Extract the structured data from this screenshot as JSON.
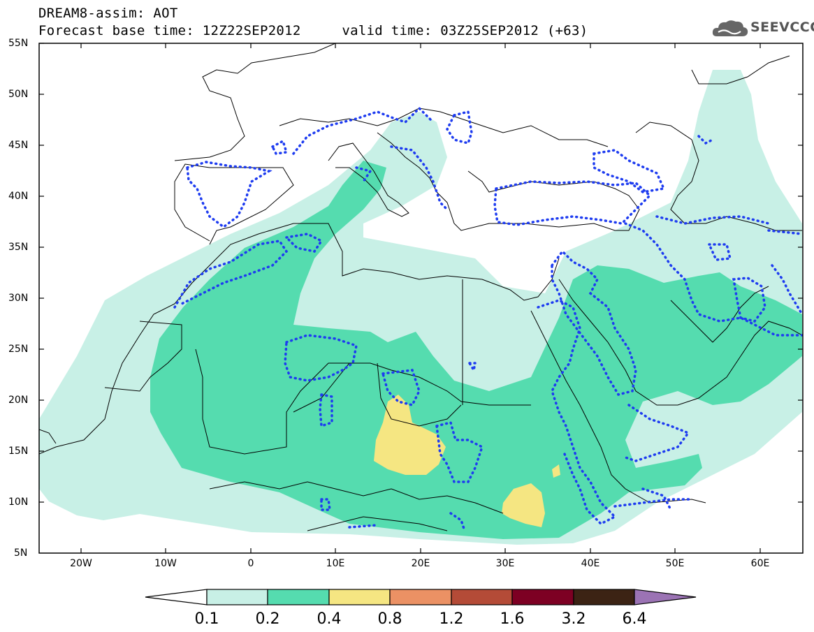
{
  "title": {
    "line1": "DREAM8-assim: AOT",
    "line2": "Forecast base time: 12Z22SEP2012     valid time: 03Z25SEP2012 (+63)"
  },
  "logo": {
    "text": "SEEVCCC",
    "icon": "cloud-icon"
  },
  "axes": {
    "lat_labels": [
      "55N",
      "50N",
      "45N",
      "40N",
      "35N",
      "30N",
      "25N",
      "20N",
      "15N",
      "10N",
      "5N"
    ],
    "lon_labels": [
      "20W",
      "10W",
      "0",
      "10E",
      "20E",
      "30E",
      "40E",
      "50E",
      "60E"
    ]
  },
  "colorbar": {
    "labels": [
      "0.1",
      "0.2",
      "0.4",
      "0.8",
      "1.2",
      "1.6",
      "3.2",
      "6.4"
    ],
    "colors": {
      "under": "#ffffff",
      "bin1": "#c8f0e6",
      "bin2": "#55dcaf",
      "bin3": "#f5e682",
      "bin4": "#eb9164",
      "bin5": "#b44b37",
      "bin6": "#7d0023",
      "bin7": "#3c2314",
      "over": "#9b73b4"
    }
  },
  "map_colors": {
    "dotted_contour": "#1e3cf0",
    "coast": "#000000"
  }
}
